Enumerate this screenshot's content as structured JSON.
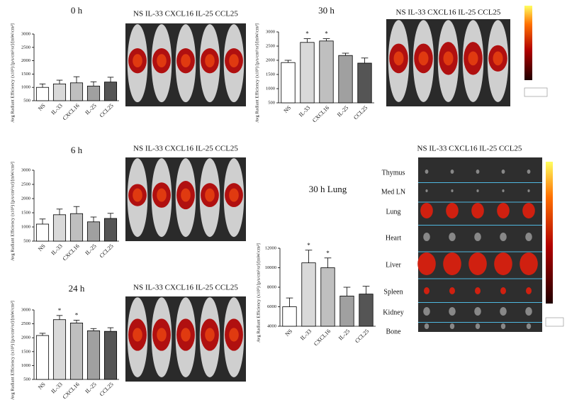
{
  "chart_data": [
    {
      "type": "bar",
      "title": "0 h",
      "y_label": "Avg Radiant Efficiency (x10⁵) [p/s/cm²/sr]/[mW/cm²]",
      "categories": [
        "NS",
        "IL-33",
        "CXCL16",
        "IL-25",
        "CCL25"
      ],
      "values": [
        1000,
        1130,
        1170,
        1050,
        1200
      ],
      "errors": [
        130,
        140,
        230,
        160,
        180
      ],
      "colors": [
        "#ffffff",
        "#d9d9d9",
        "#bfbfbf",
        "#a0a0a0",
        "#555555"
      ],
      "ylim": [
        500,
        3000
      ],
      "yticks": [
        500,
        1000,
        1500,
        2000,
        2500,
        3000
      ]
    },
    {
      "type": "bar",
      "title": "30 h",
      "y_label": "Avg Radiant Efficiency (x10⁵) [p/s/cm²/sr]/[mW/cm²]",
      "categories": [
        "NS",
        "IL-33",
        "CXCL16",
        "IL-25",
        "CCL25"
      ],
      "values": [
        1920,
        2630,
        2680,
        2170,
        1900
      ],
      "errors": [
        80,
        130,
        80,
        80,
        180
      ],
      "colors": [
        "#ffffff",
        "#d9d9d9",
        "#bfbfbf",
        "#a0a0a0",
        "#555555"
      ],
      "ylim": [
        500,
        3000
      ],
      "yticks": [
        500,
        1000,
        1500,
        2000,
        2500,
        3000
      ],
      "annotations": [
        {
          "category": "IL-33",
          "text": "*"
        },
        {
          "category": "CXCL16",
          "text": "*"
        }
      ]
    },
    {
      "type": "bar",
      "title": "6 h",
      "y_label": "Avg Radiant Efficiency (x10⁵) [p/s/cm²/sr]/[mW/cm²]",
      "categories": [
        "NS",
        "IL-33",
        "CXCL16",
        "IL-25",
        "CCL25"
      ],
      "values": [
        1100,
        1430,
        1470,
        1180,
        1300
      ],
      "errors": [
        180,
        200,
        250,
        170,
        180
      ],
      "colors": [
        "#ffffff",
        "#d9d9d9",
        "#bfbfbf",
        "#a0a0a0",
        "#555555"
      ],
      "ylim": [
        500,
        3000
      ],
      "yticks": [
        500,
        1000,
        1500,
        2000,
        2500,
        3000
      ]
    },
    {
      "type": "bar",
      "title": "24 h",
      "y_label": "Avg Radiant Efficiency (x10⁵) [p/s/cm²/sr]/[mW/cm²]",
      "categories": [
        "NS",
        "IL-33",
        "CXCL16",
        "IL-25",
        "CCL25"
      ],
      "values": [
        2080,
        2650,
        2530,
        2250,
        2230
      ],
      "errors": [
        80,
        150,
        100,
        80,
        130
      ],
      "colors": [
        "#ffffff",
        "#d9d9d9",
        "#bfbfbf",
        "#a0a0a0",
        "#555555"
      ],
      "ylim": [
        500,
        3000
      ],
      "yticks": [
        500,
        1000,
        1500,
        2000,
        2500,
        3000
      ],
      "annotations": [
        {
          "category": "IL-33",
          "text": "*"
        },
        {
          "category": "CXCL16",
          "text": "*"
        }
      ]
    },
    {
      "type": "bar",
      "title": "30 h  Lung",
      "y_label": "Avg Radiant Efficiency (x10⁵) [p/s/cm²/sr]/[mW/cm²]",
      "categories": [
        "NS",
        "IL-33",
        "CXCL16",
        "IL-25",
        "CCL25"
      ],
      "values": [
        6000,
        10500,
        10000,
        7100,
        7300
      ],
      "errors": [
        900,
        1300,
        1000,
        900,
        800
      ],
      "colors": [
        "#ffffff",
        "#d9d9d9",
        "#bfbfbf",
        "#a0a0a0",
        "#555555"
      ],
      "ylim": [
        4000,
        12000
      ],
      "yticks": [
        4000,
        6000,
        8000,
        10000,
        12000
      ],
      "annotations": [
        {
          "category": "IL-33",
          "text": "*"
        },
        {
          "category": "CXCL16",
          "text": "*"
        }
      ]
    }
  ],
  "image_labels": [
    "NS IL-33 CXCL16 IL-25 CCL25",
    "NS IL-33 CXCL16 IL-25 CCL25",
    "NS IL-33 CXCL16 IL-25 CCL25",
    "NS IL-33 CXCL16 IL-25 CCL25",
    "NS IL-33 CXCL16 IL-25 CCL25"
  ],
  "organs": [
    "Thymus",
    "Med LN",
    "Lung",
    "Heart",
    "Liver",
    "Spleen",
    "Kidney",
    "Bone"
  ]
}
